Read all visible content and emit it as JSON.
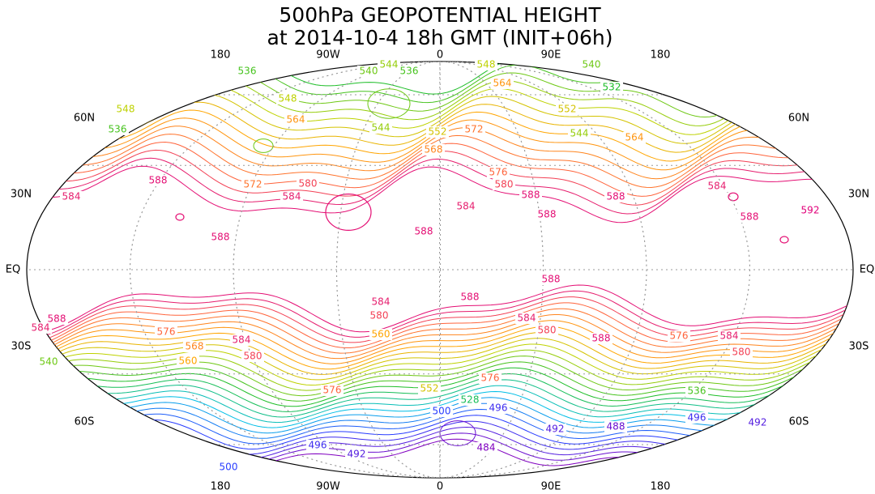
{
  "title": [
    "500hPa GEOPOTENTIAL HEIGHT",
    "at 2014-10-4 18h GMT (INIT+06h)"
  ],
  "longitude_labels": {
    "top": [
      "180",
      "90W",
      "0",
      "90E",
      "180"
    ],
    "bottom": [
      "180",
      "90W",
      "0",
      "90E",
      "180"
    ]
  },
  "latitude_labels": {
    "left": [
      "60N",
      "30N",
      "EQ",
      "30S",
      "60S"
    ],
    "right": [
      "60N",
      "30N",
      "EQ",
      "30S",
      "60S"
    ]
  },
  "contour_labels": [
    "536",
    "540",
    "544",
    "536",
    "548",
    "540",
    "564",
    "532",
    "548",
    "544",
    "552",
    "572",
    "552",
    "544",
    "564",
    "536",
    "548",
    "564",
    "568",
    "572",
    "580",
    "584",
    "588",
    "584",
    "576",
    "580",
    "588",
    "584",
    "588",
    "584",
    "592",
    "588",
    "588",
    "588",
    "588",
    "588",
    "588",
    "584",
    "580",
    "584",
    "580",
    "588",
    "576",
    "584",
    "580",
    "588",
    "584",
    "576",
    "568",
    "584",
    "580",
    "560",
    "560",
    "576",
    "576",
    "528",
    "496",
    "500",
    "492",
    "488",
    "484",
    "496",
    "492",
    "500",
    "496",
    "492",
    "536",
    "540",
    "552"
  ]
}
